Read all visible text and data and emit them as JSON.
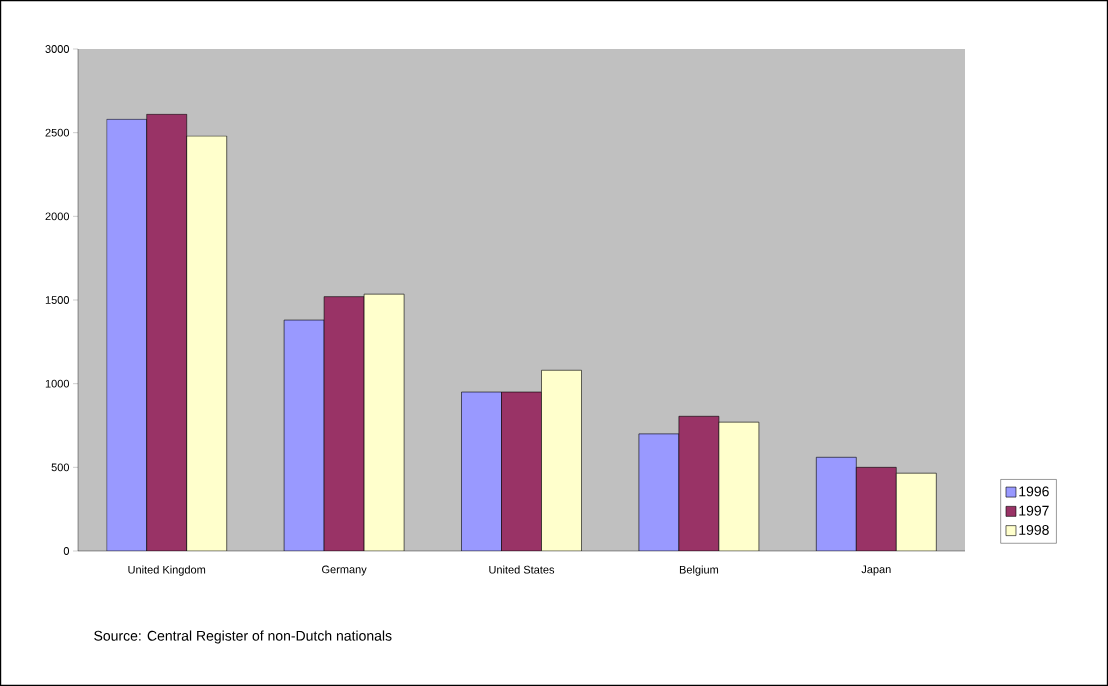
{
  "chart_data": {
    "type": "bar",
    "categories": [
      "United Kingdom",
      "Germany",
      "United States",
      "Belgium",
      "Japan"
    ],
    "series": [
      {
        "name": "1996",
        "color": "#9999ff",
        "values": [
          2580,
          1380,
          950,
          700,
          560
        ]
      },
      {
        "name": "1997",
        "color": "#993366",
        "values": [
          2610,
          1520,
          950,
          805,
          500
        ]
      },
      {
        "name": "1998",
        "color": "#ffffcc",
        "values": [
          2480,
          1535,
          1080,
          770,
          465
        ]
      }
    ],
    "ylim": [
      0,
      3000
    ],
    "yticks": [
      0,
      500,
      1000,
      1500,
      2000,
      2500,
      3000
    ],
    "legend": "right",
    "annotations": [
      "Source: Central Register of non-Dutch nationals"
    ]
  }
}
